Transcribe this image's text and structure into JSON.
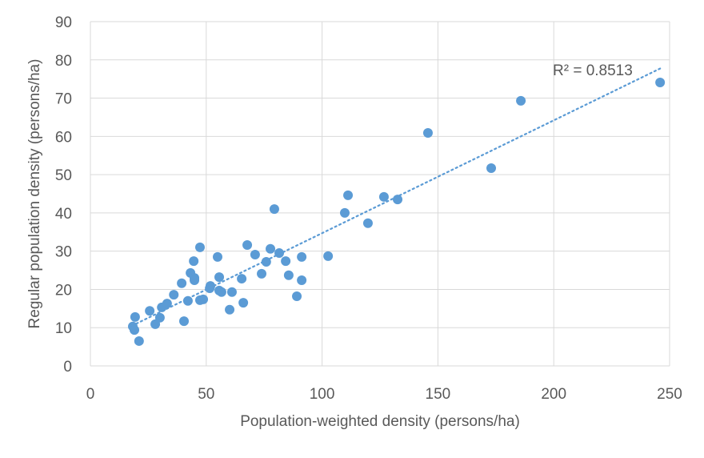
{
  "chart_data": {
    "type": "scatter",
    "title": "",
    "xlabel": "Population-weighted density (persons/ha)",
    "ylabel": "Regular population density (persons/ha)",
    "xlim": [
      0,
      250
    ],
    "ylim": [
      0,
      90
    ],
    "xticks": [
      0,
      50,
      100,
      150,
      200,
      250
    ],
    "yticks": [
      0,
      10,
      20,
      30,
      40,
      50,
      60,
      70,
      80,
      90
    ],
    "grid": true,
    "marker_color": "#5b9bd5",
    "trendline": {
      "type": "linear",
      "slope": 0.295,
      "intercept": 5.2,
      "x_range": [
        18,
        246
      ],
      "label": "R² = 0.8513",
      "style": "dotted"
    },
    "points": [
      [
        18.3,
        10.3
      ],
      [
        19,
        9.4
      ],
      [
        19.3,
        12.8
      ],
      [
        21,
        6.5
      ],
      [
        25.6,
        14.4
      ],
      [
        28,
        10.9
      ],
      [
        30,
        12.6
      ],
      [
        30.8,
        15.3
      ],
      [
        33.1,
        16.3
      ],
      [
        36,
        18.6
      ],
      [
        39.4,
        21.6
      ],
      [
        40.4,
        11.7
      ],
      [
        42.1,
        17
      ],
      [
        43.2,
        24.3
      ],
      [
        44.6,
        27.4
      ],
      [
        44.9,
        23
      ],
      [
        44.9,
        22.4
      ],
      [
        47.3,
        31
      ],
      [
        47.3,
        17.2
      ],
      [
        48.7,
        17.4
      ],
      [
        51.5,
        20.3
      ],
      [
        51.8,
        20.9
      ],
      [
        54.9,
        28.5
      ],
      [
        55.6,
        23.2
      ],
      [
        55.6,
        19.7
      ],
      [
        56.6,
        19.3
      ],
      [
        60.1,
        14.7
      ],
      [
        61.1,
        19.3
      ],
      [
        65.3,
        22.8
      ],
      [
        66,
        16.5
      ],
      [
        67.7,
        31.6
      ],
      [
        71.1,
        29.1
      ],
      [
        73.9,
        24.1
      ],
      [
        75.9,
        27.2
      ],
      [
        77.7,
        30.6
      ],
      [
        79.4,
        41
      ],
      [
        81.5,
        29.5
      ],
      [
        84.3,
        27.4
      ],
      [
        85.6,
        23.7
      ],
      [
        89.1,
        18.2
      ],
      [
        91.2,
        28.5
      ],
      [
        91.2,
        22.4
      ],
      [
        102.6,
        28.7
      ],
      [
        109.8,
        40
      ],
      [
        111.2,
        44.6
      ],
      [
        119.8,
        37.3
      ],
      [
        126.7,
        44.2
      ],
      [
        132.6,
        43.5
      ],
      [
        145.7,
        60.9
      ],
      [
        173,
        51.7
      ],
      [
        185.8,
        69.3
      ],
      [
        245.9,
        74.1
      ]
    ]
  }
}
